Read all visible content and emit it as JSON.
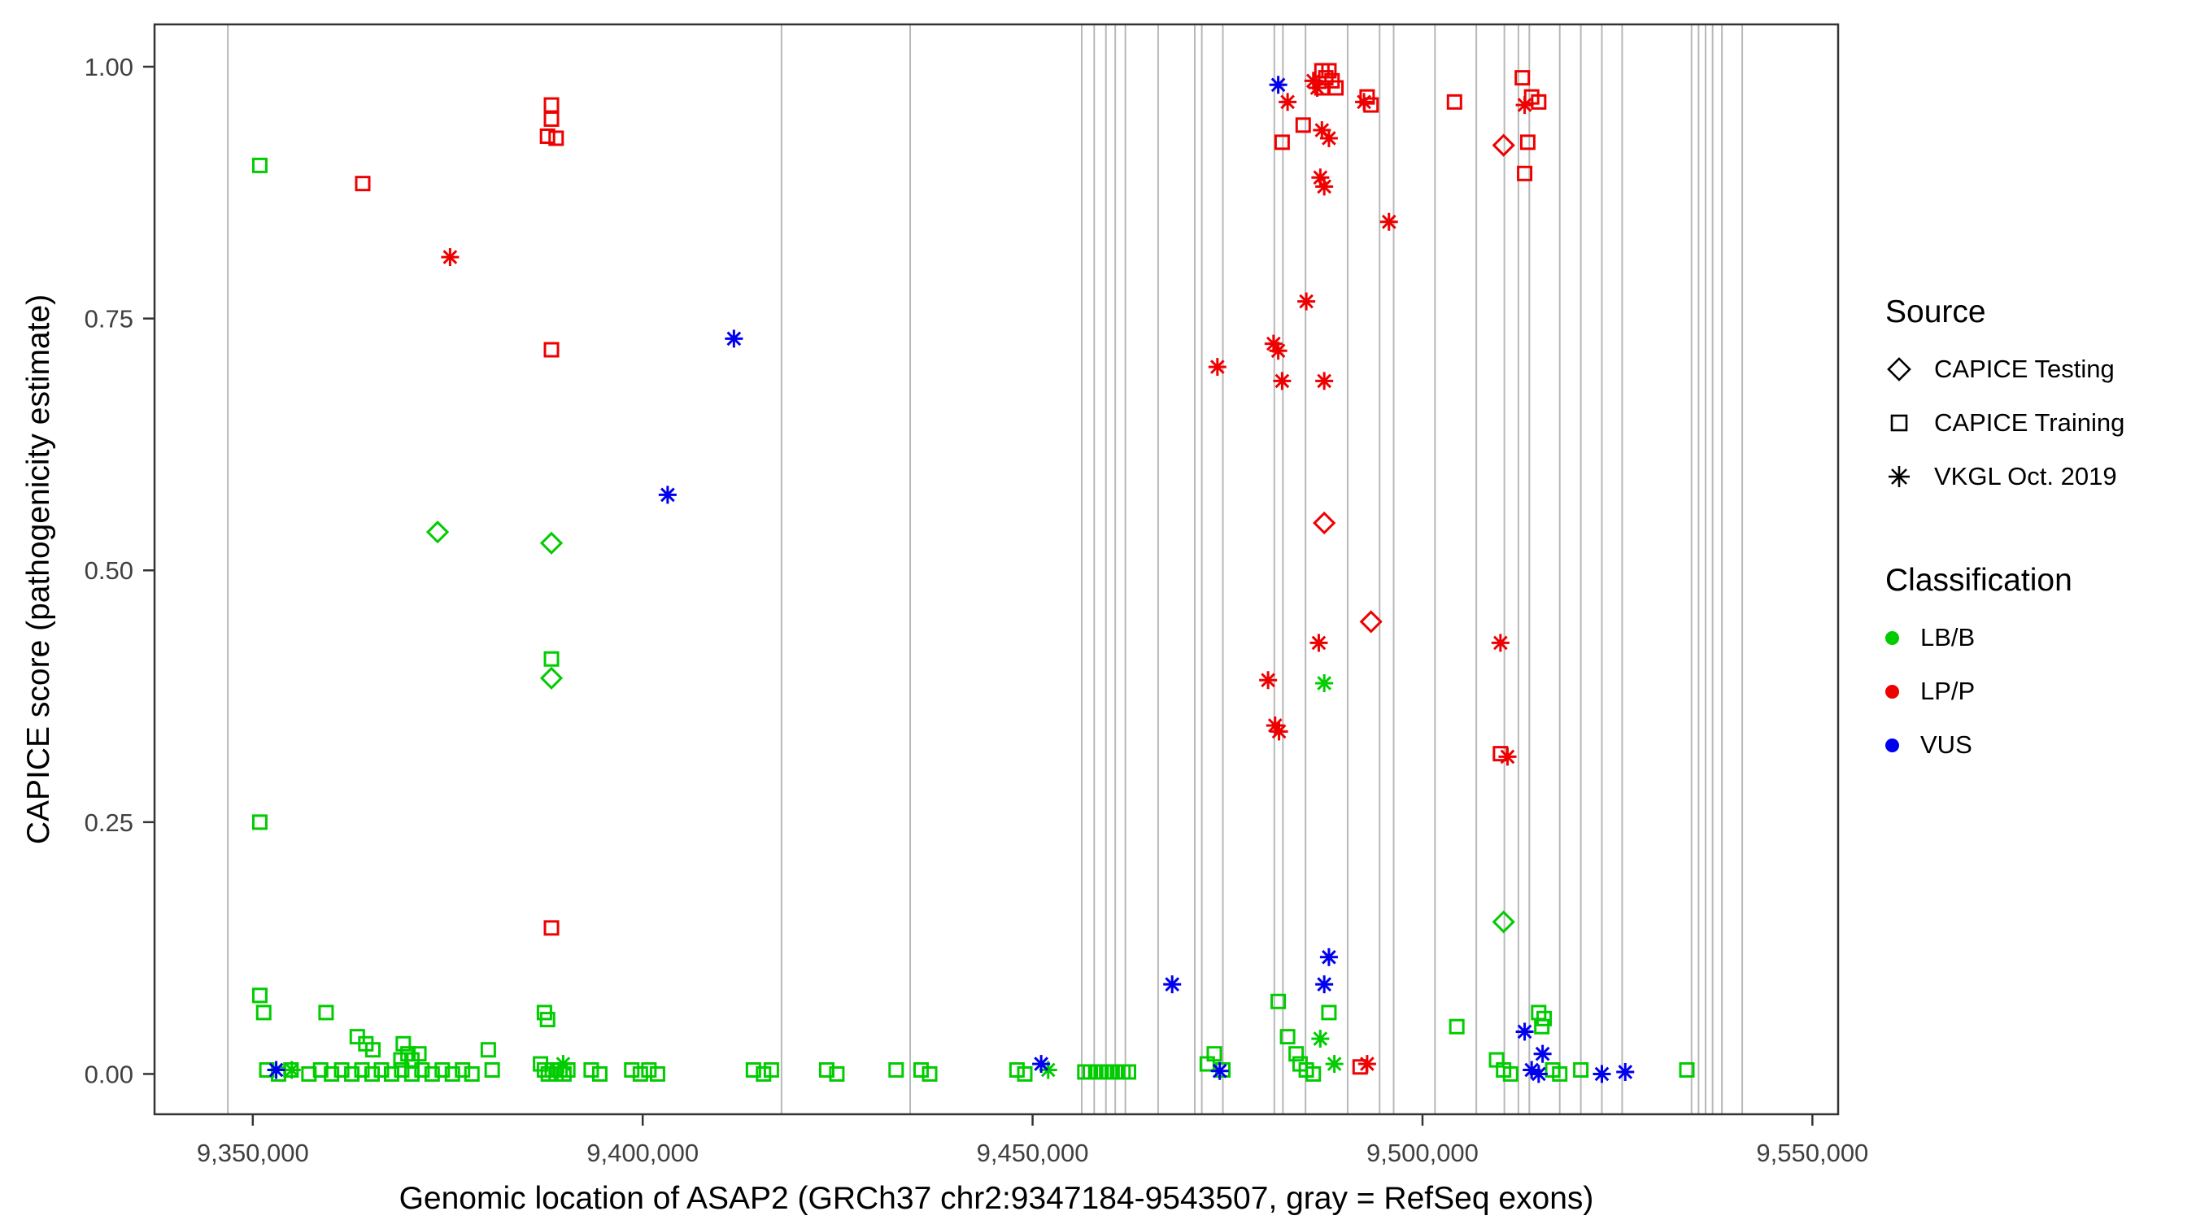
{
  "legend": {
    "source_title": "Source",
    "source_items": [
      {
        "label": "CAPICE Testing",
        "marker": "diamond"
      },
      {
        "label": "CAPICE Training",
        "marker": "square"
      },
      {
        "label": "VKGL Oct. 2019",
        "marker": "asterisk"
      }
    ],
    "classification_title": "Classification",
    "classification_items": [
      {
        "label": "LB/B",
        "color": "#00CC00"
      },
      {
        "label": "LP/P",
        "color": "#EE0000"
      },
      {
        "label": "VUS",
        "color": "#0000EE"
      }
    ]
  },
  "chart_data": {
    "type": "scatter",
    "title": "",
    "xlabel": "Genomic location of ASAP2 (GRCh37 chr2:9347184-9543507, gray = RefSeq exons)",
    "ylabel": "CAPICE score (pathogenicity estimate)",
    "xlim": [
      9337400,
      9553300
    ],
    "ylim": [
      -0.04,
      1.042
    ],
    "x_ticks": [
      9350000,
      9400000,
      9450000,
      9500000,
      9550000
    ],
    "x_tick_labels": [
      "9,350,000",
      "9,400,000",
      "9,450,000",
      "9,500,000",
      "9,550,000"
    ],
    "y_ticks": [
      0.0,
      0.25,
      0.5,
      0.75,
      1.0
    ],
    "y_tick_labels": [
      "0.00",
      "0.25",
      "0.50",
      "0.75",
      "1.00"
    ],
    "grid": false,
    "legend_position": "right",
    "exon_color": "#b8b8b8",
    "exon_positions": [
      9346800,
      9417800,
      9434300,
      9456300,
      9457900,
      9459400,
      9460600,
      9461900,
      9466100,
      9470800,
      9471700,
      9474400,
      9481000,
      9482100,
      9485000,
      9490400,
      9494500,
      9496300,
      9501600,
      9506900,
      9510500,
      9512300,
      9513700,
      9517600,
      9520300,
      9523000,
      9525600,
      9534500,
      9535400,
      9536300,
      9537200,
      9538400,
      9541000
    ],
    "classification_colors": {
      "LB/B": "#00CC00",
      "LP/P": "#EE0000",
      "VUS": "#0000EE"
    },
    "marker_by_source": {
      "CAPICE Testing": "diamond",
      "CAPICE Training": "square",
      "VKGL Oct. 2019": "asterisk"
    },
    "series": [
      {
        "source": "CAPICE Training",
        "classification": "LB/B",
        "marker": "square",
        "color": "#00CC00",
        "points": [
          [
            9350900,
            0.902
          ],
          [
            9350900,
            0.25
          ],
          [
            9388300,
            0.412
          ],
          [
            9350900,
            0.078
          ],
          [
            9351400,
            0.061
          ],
          [
            9359400,
            0.061
          ],
          [
            9363400,
            0.037
          ],
          [
            9364500,
            0.03
          ],
          [
            9365400,
            0.024
          ],
          [
            9369300,
            0.03
          ],
          [
            9369000,
            0.014
          ],
          [
            9369900,
            0.02
          ],
          [
            9370400,
            0.014
          ],
          [
            9371300,
            0.02
          ],
          [
            9351800,
            0.004
          ],
          [
            9353300,
            0.0
          ],
          [
            9354900,
            0.004
          ],
          [
            9357200,
            0.0
          ],
          [
            9358700,
            0.004
          ],
          [
            9360100,
            0.0
          ],
          [
            9361400,
            0.004
          ],
          [
            9362700,
            0.0
          ],
          [
            9364000,
            0.004
          ],
          [
            9365300,
            0.0
          ],
          [
            9366500,
            0.004
          ],
          [
            9367800,
            0.0
          ],
          [
            9369100,
            0.004
          ],
          [
            9370400,
            0.0
          ],
          [
            9371700,
            0.004
          ],
          [
            9373000,
            0.0
          ],
          [
            9374300,
            0.004
          ],
          [
            9375600,
            0.0
          ],
          [
            9376900,
            0.004
          ],
          [
            9378100,
            0.0
          ],
          [
            9380200,
            0.024
          ],
          [
            9380700,
            0.004
          ],
          [
            9387400,
            0.061
          ],
          [
            9387800,
            0.054
          ],
          [
            9386900,
            0.01
          ],
          [
            9387400,
            0.004
          ],
          [
            9387900,
            0.0
          ],
          [
            9388400,
            0.004
          ],
          [
            9388900,
            0.0
          ],
          [
            9389400,
            0.004
          ],
          [
            9389900,
            0.0
          ],
          [
            9390400,
            0.004
          ],
          [
            9393400,
            0.004
          ],
          [
            9394500,
            0.0
          ],
          [
            9398600,
            0.004
          ],
          [
            9399700,
            0.0
          ],
          [
            9400800,
            0.004
          ],
          [
            9401900,
            0.0
          ],
          [
            9414200,
            0.004
          ],
          [
            9415500,
            0.0
          ],
          [
            9416500,
            0.004
          ],
          [
            9423600,
            0.004
          ],
          [
            9424900,
            0.0
          ],
          [
            9432500,
            0.004
          ],
          [
            9435700,
            0.004
          ],
          [
            9436800,
            0.0
          ],
          [
            9448000,
            0.004
          ],
          [
            9449000,
            0.0
          ],
          [
            9456700,
            0.002
          ],
          [
            9457400,
            0.002
          ],
          [
            9458100,
            0.002
          ],
          [
            9458800,
            0.002
          ],
          [
            9459500,
            0.002
          ],
          [
            9460200,
            0.002
          ],
          [
            9460900,
            0.002
          ],
          [
            9461600,
            0.002
          ],
          [
            9462300,
            0.002
          ],
          [
            9472400,
            0.01
          ],
          [
            9473300,
            0.02
          ],
          [
            9474400,
            0.004
          ],
          [
            9481500,
            0.072
          ],
          [
            9482700,
            0.037
          ],
          [
            9483800,
            0.02
          ],
          [
            9484300,
            0.01
          ],
          [
            9485100,
            0.004
          ],
          [
            9486000,
            0.0
          ],
          [
            9488000,
            0.061
          ],
          [
            9504400,
            0.047
          ],
          [
            9509500,
            0.014
          ],
          [
            9510400,
            0.004
          ],
          [
            9511300,
            0.0
          ],
          [
            9514900,
            0.061
          ],
          [
            9515600,
            0.055
          ],
          [
            9515300,
            0.047
          ],
          [
            9516700,
            0.004
          ],
          [
            9517600,
            0.0
          ],
          [
            9520300,
            0.004
          ],
          [
            9533900,
            0.004
          ]
        ]
      },
      {
        "source": "CAPICE Training",
        "classification": "LP/P",
        "marker": "square",
        "color": "#EE0000",
        "points": [
          [
            9364100,
            0.884
          ],
          [
            9388300,
            0.962
          ],
          [
            9388300,
            0.948
          ],
          [
            9387800,
            0.931
          ],
          [
            9388900,
            0.929
          ],
          [
            9388300,
            0.719
          ],
          [
            9388300,
            0.145
          ],
          [
            9482000,
            0.925
          ],
          [
            9484700,
            0.942
          ],
          [
            9487100,
            0.996
          ],
          [
            9488000,
            0.996
          ],
          [
            9487600,
            0.989
          ],
          [
            9488400,
            0.986
          ],
          [
            9487100,
            0.979
          ],
          [
            9488900,
            0.979
          ],
          [
            9492900,
            0.97
          ],
          [
            9493400,
            0.962
          ],
          [
            9504100,
            0.965
          ],
          [
            9512800,
            0.989
          ],
          [
            9514000,
            0.97
          ],
          [
            9514900,
            0.965
          ],
          [
            9513500,
            0.925
          ],
          [
            9513100,
            0.894
          ],
          [
            9510000,
            0.318
          ],
          [
            9492000,
            0.007
          ]
        ]
      },
      {
        "source": "CAPICE Testing",
        "classification": "LB/B",
        "marker": "diamond",
        "color": "#00CC00",
        "points": [
          [
            9373700,
            0.538
          ],
          [
            9388300,
            0.527
          ],
          [
            9388300,
            0.393
          ],
          [
            9510400,
            0.151
          ]
        ]
      },
      {
        "source": "CAPICE Testing",
        "classification": "LP/P",
        "marker": "diamond",
        "color": "#EE0000",
        "points": [
          [
            9487400,
            0.547
          ],
          [
            9493400,
            0.449
          ],
          [
            9510400,
            0.922
          ]
        ]
      },
      {
        "source": "VKGL Oct. 2019",
        "classification": "LB/B",
        "marker": "asterisk",
        "color": "#00CC00",
        "points": [
          [
            9355000,
            0.004
          ],
          [
            9389800,
            0.01
          ],
          [
            9452000,
            0.004
          ],
          [
            9486900,
            0.035
          ],
          [
            9488700,
            0.01
          ],
          [
            9487400,
            0.388
          ]
        ]
      },
      {
        "source": "VKGL Oct. 2019",
        "classification": "LP/P",
        "marker": "asterisk",
        "color": "#EE0000",
        "points": [
          [
            9375300,
            0.811
          ],
          [
            9473700,
            0.702
          ],
          [
            9480900,
            0.725
          ],
          [
            9481500,
            0.718
          ],
          [
            9482000,
            0.688
          ],
          [
            9485100,
            0.767
          ],
          [
            9486000,
            0.986
          ],
          [
            9486500,
            0.979
          ],
          [
            9482700,
            0.965
          ],
          [
            9487100,
            0.937
          ],
          [
            9488000,
            0.929
          ],
          [
            9486900,
            0.89
          ],
          [
            9487400,
            0.881
          ],
          [
            9487400,
            0.688
          ],
          [
            9492500,
            0.965
          ],
          [
            9495700,
            0.846
          ],
          [
            9480200,
            0.391
          ],
          [
            9481100,
            0.346
          ],
          [
            9481600,
            0.34
          ],
          [
            9486700,
            0.428
          ],
          [
            9510000,
            0.428
          ],
          [
            9510900,
            0.315
          ],
          [
            9513100,
            0.962
          ],
          [
            9492900,
            0.01
          ]
        ]
      },
      {
        "source": "VKGL Oct. 2019",
        "classification": "VUS",
        "marker": "asterisk",
        "color": "#0000EE",
        "points": [
          [
            9403200,
            0.575
          ],
          [
            9411700,
            0.73
          ],
          [
            9481500,
            0.982
          ],
          [
            9467900,
            0.089
          ],
          [
            9488000,
            0.116
          ],
          [
            9487400,
            0.089
          ],
          [
            9353000,
            0.004
          ],
          [
            9451100,
            0.01
          ],
          [
            9474000,
            0.003
          ],
          [
            9513100,
            0.042
          ],
          [
            9515400,
            0.02
          ],
          [
            9514000,
            0.004
          ],
          [
            9514900,
            0.0
          ],
          [
            9523000,
            0.0
          ],
          [
            9526000,
            0.002
          ]
        ]
      }
    ]
  }
}
